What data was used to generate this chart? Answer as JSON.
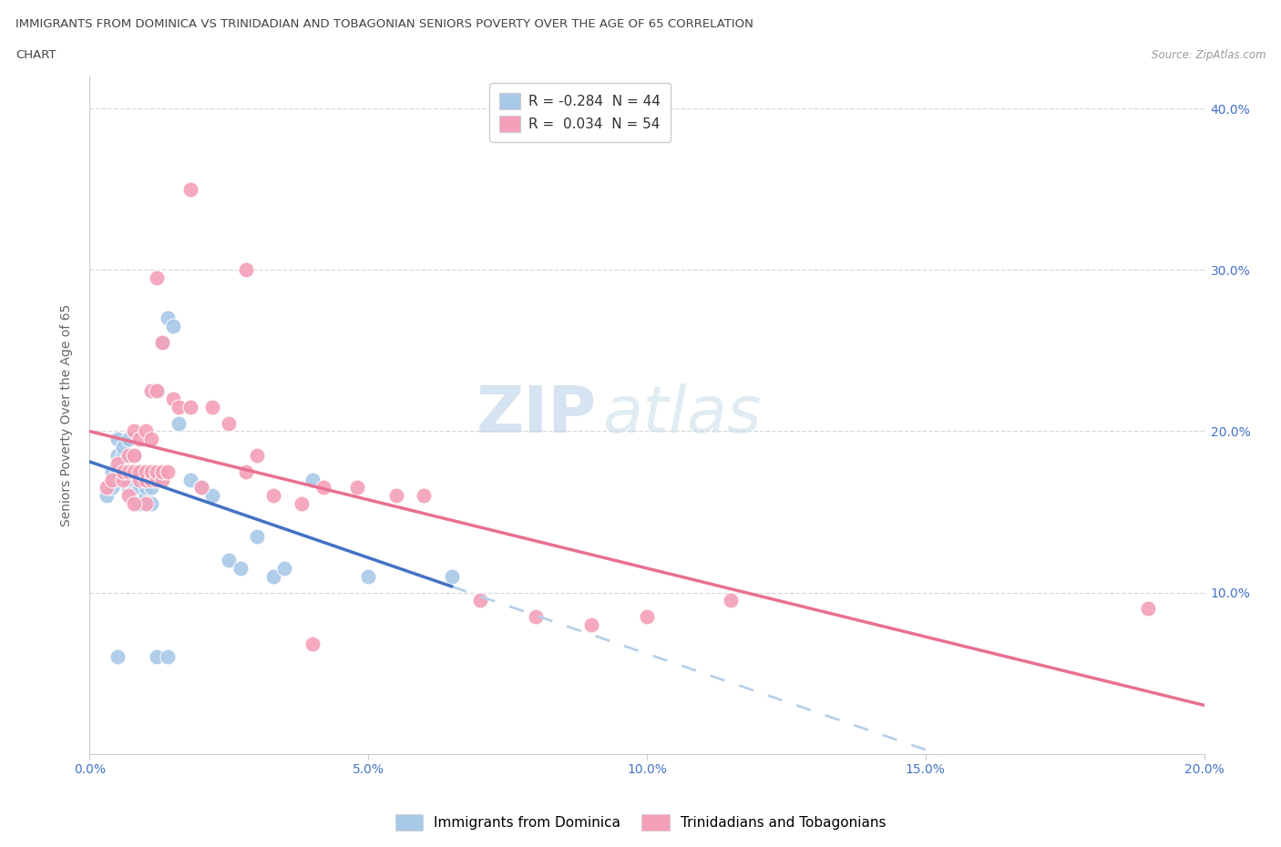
{
  "title_line1": "IMMIGRANTS FROM DOMINICA VS TRINIDADIAN AND TOBAGONIAN SENIORS POVERTY OVER THE AGE OF 65 CORRELATION",
  "title_line2": "CHART",
  "source": "Source: ZipAtlas.com",
  "ylabel": "Seniors Poverty Over the Age of 65",
  "xlabel_blue": "Immigrants from Dominica",
  "xlabel_pink": "Trinidadians and Tobagonians",
  "r_blue": -0.284,
  "n_blue": 44,
  "r_pink": 0.034,
  "n_pink": 54,
  "xmin": 0.0,
  "xmax": 0.2,
  "ymin": 0.0,
  "ymax": 0.42,
  "yticks": [
    0.1,
    0.2,
    0.3,
    0.4
  ],
  "xticks": [
    0.0,
    0.05,
    0.1,
    0.15,
    0.2
  ],
  "color_blue": "#a8c8e8",
  "color_pink": "#f4a0b8",
  "line_blue": "#4472c4",
  "line_pink": "#e87090",
  "line_dashed_color": "#b8d0e8",
  "watermark_zip": "ZIP",
  "watermark_atlas": "atlas",
  "blue_x": [
    0.003,
    0.004,
    0.004,
    0.005,
    0.005,
    0.005,
    0.006,
    0.006,
    0.006,
    0.007,
    0.007,
    0.007,
    0.007,
    0.008,
    0.008,
    0.008,
    0.008,
    0.009,
    0.009,
    0.009,
    0.01,
    0.01,
    0.01,
    0.011,
    0.011,
    0.012,
    0.013,
    0.014,
    0.015,
    0.016,
    0.018,
    0.02,
    0.022,
    0.025,
    0.027,
    0.03,
    0.033,
    0.035,
    0.04,
    0.05,
    0.005,
    0.012,
    0.014,
    0.065
  ],
  "blue_y": [
    0.16,
    0.165,
    0.175,
    0.175,
    0.185,
    0.195,
    0.175,
    0.185,
    0.19,
    0.165,
    0.17,
    0.175,
    0.195,
    0.165,
    0.17,
    0.175,
    0.185,
    0.155,
    0.165,
    0.175,
    0.16,
    0.165,
    0.17,
    0.155,
    0.165,
    0.225,
    0.255,
    0.27,
    0.265,
    0.205,
    0.17,
    0.165,
    0.16,
    0.12,
    0.115,
    0.135,
    0.11,
    0.115,
    0.17,
    0.11,
    0.06,
    0.06,
    0.06,
    0.11
  ],
  "pink_x": [
    0.003,
    0.004,
    0.005,
    0.006,
    0.006,
    0.007,
    0.007,
    0.008,
    0.008,
    0.009,
    0.009,
    0.01,
    0.01,
    0.011,
    0.011,
    0.012,
    0.012,
    0.013,
    0.013,
    0.014,
    0.015,
    0.016,
    0.018,
    0.02,
    0.022,
    0.025,
    0.028,
    0.03,
    0.033,
    0.038,
    0.042,
    0.048,
    0.055,
    0.06,
    0.07,
    0.08,
    0.09,
    0.1,
    0.115,
    0.19,
    0.007,
    0.008,
    0.009,
    0.01,
    0.011,
    0.011,
    0.012,
    0.013,
    0.018,
    0.028,
    0.04,
    0.012,
    0.01,
    0.008
  ],
  "pink_y": [
    0.165,
    0.17,
    0.18,
    0.17,
    0.175,
    0.175,
    0.185,
    0.175,
    0.185,
    0.17,
    0.175,
    0.17,
    0.175,
    0.17,
    0.175,
    0.17,
    0.175,
    0.17,
    0.175,
    0.175,
    0.22,
    0.215,
    0.215,
    0.165,
    0.215,
    0.205,
    0.175,
    0.185,
    0.16,
    0.155,
    0.165,
    0.165,
    0.16,
    0.16,
    0.095,
    0.085,
    0.08,
    0.085,
    0.095,
    0.09,
    0.16,
    0.2,
    0.195,
    0.2,
    0.195,
    0.225,
    0.225,
    0.255,
    0.35,
    0.3,
    0.068,
    0.295,
    0.155,
    0.155
  ]
}
